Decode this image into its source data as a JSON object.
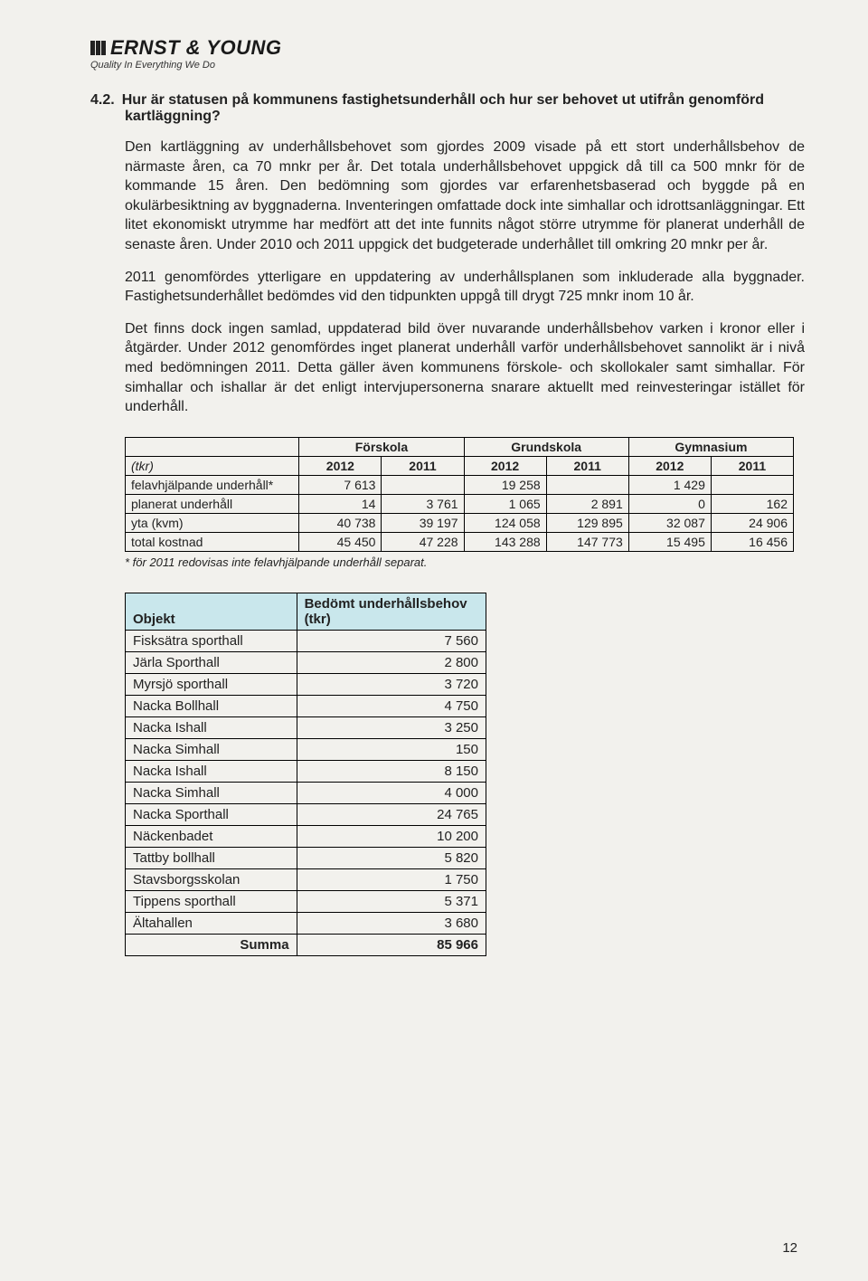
{
  "logo": {
    "brand": "ERNST & YOUNG",
    "tagline": "Quality In Everything We Do"
  },
  "heading": {
    "number": "4.2.",
    "title": "Hur är statusen på kommunens fastighetsunderhåll och hur ser behovet ut utifrån genomförd kartläggning?"
  },
  "paragraphs": {
    "p1": "Den kartläggning av underhållsbehovet som gjordes 2009 visade på ett stort underhållsbehov de närmaste åren, ca 70 mnkr per år. Det totala underhållsbehovet uppgick då till ca 500 mnkr för de kommande 15 åren. Den bedömning som gjordes var erfarenhetsbaserad och byggde på en okulärbesiktning av byggnaderna. Inventeringen omfattade dock inte simhallar och idrottsanläggningar. Ett litet ekonomiskt utrymme har medfört att det inte funnits något större utrymme för planerat underhåll de senaste åren. Under 2010 och 2011 uppgick det budgeterade underhållet till omkring 20 mnkr per år.",
    "p2": "2011 genomfördes ytterligare en uppdatering av underhållsplanen som inkluderade alla byggnader. Fastighetsunderhållet bedömdes vid den tidpunkten uppgå till drygt 725 mnkr inom 10 år.",
    "p3": "Det finns dock ingen samlad, uppdaterad bild över nuvarande underhållsbehov varken i kronor eller i åtgärder. Under 2012 genomfördes inget planerat underhåll varför underhållsbehovet sannolikt är i nivå med bedömningen 2011. Detta gäller även kommunens förskole- och skollokaler samt simhallar. För simhallar och ishallar är det enligt intervjupersonerna snarare aktuellt med reinvesteringar istället för underhåll."
  },
  "table1": {
    "groups": [
      "Förskola",
      "Grundskola",
      "Gymnasium"
    ],
    "years": [
      "2012",
      "2011",
      "2012",
      "2011",
      "2012",
      "2011"
    ],
    "corner": "(tkr)",
    "rows": [
      {
        "label": "felavhjälpande underhåll*",
        "cells": [
          "7 613",
          "",
          "19 258",
          "",
          "1 429",
          ""
        ]
      },
      {
        "label": "planerat underhåll",
        "cells": [
          "14",
          "3 761",
          "1 065",
          "2 891",
          "0",
          "162"
        ]
      },
      {
        "label": "yta (kvm)",
        "cells": [
          "40 738",
          "39 197",
          "124 058",
          "129 895",
          "32 087",
          "24 906"
        ]
      },
      {
        "label": "total kostnad",
        "cells": [
          "45 450",
          "47 228",
          "143 288",
          "147 773",
          "15 495",
          "16 456"
        ]
      }
    ],
    "footnote": "* för 2011 redovisas inte felavhjälpande underhåll separat."
  },
  "table2": {
    "header_shade": "#c9e7ec",
    "col_obj": "Objekt",
    "col_val": "Bedömt underhållsbehov (tkr)",
    "rows": [
      {
        "obj": "Fisksätra sporthall",
        "val": "7 560"
      },
      {
        "obj": "Järla Sporthall",
        "val": "2 800"
      },
      {
        "obj": "Myrsjö sporthall",
        "val": "3 720"
      },
      {
        "obj": "Nacka Bollhall",
        "val": "4 750"
      },
      {
        "obj": "Nacka Ishall",
        "val": "3 250"
      },
      {
        "obj": "Nacka Simhall",
        "val": "150"
      },
      {
        "obj": "Nacka Ishall",
        "val": "8 150"
      },
      {
        "obj": "Nacka Simhall",
        "val": "4 000"
      },
      {
        "obj": "Nacka Sporthall",
        "val": "24 765"
      },
      {
        "obj": "Näckenbadet",
        "val": "10 200"
      },
      {
        "obj": "Tattby bollhall",
        "val": "5 820"
      },
      {
        "obj": "Stavsborgsskolan",
        "val": "1 750"
      },
      {
        "obj": "Tippens sporthall",
        "val": "5 371"
      },
      {
        "obj": "Ältahallen",
        "val": "3 680"
      }
    ],
    "sum_label": "Summa",
    "sum_value": "85 966"
  },
  "page_number": "12"
}
